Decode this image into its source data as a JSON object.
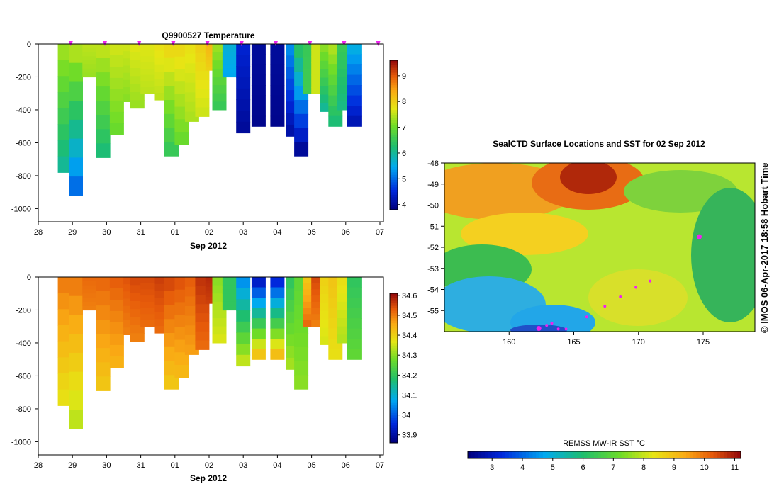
{
  "credit": "© IMOS 06-Apr-2017 18:58 Hobart Time",
  "chart_data": [
    {
      "type": "heatmap",
      "title": "Q9900527  Temperature",
      "xlabel": "Sep 2012",
      "x_ticks": [
        "28",
        "29",
        "30",
        "31",
        "01",
        "02",
        "03",
        "04",
        "05",
        "06",
        "07"
      ],
      "y_ticks": [
        0,
        -200,
        -400,
        -600,
        -800,
        -1000
      ],
      "ylim": [
        -1080,
        0
      ],
      "colorbar": {
        "min": 3.8,
        "max": 9.6,
        "ticks": [
          4,
          5,
          6,
          7,
          8,
          9
        ]
      },
      "profiles": [
        {
          "x": 28.78,
          "depth": 780,
          "surface": 7.3,
          "bottom": 6.0
        },
        {
          "x": 29.1,
          "depth": 920,
          "surface": 7.4,
          "bottom": 5.0
        },
        {
          "x": 29.5,
          "depth": 200,
          "surface": 7.5,
          "bottom": 7.3
        },
        {
          "x": 29.9,
          "depth": 690,
          "surface": 7.5,
          "bottom": 6.2
        },
        {
          "x": 30.3,
          "depth": 550,
          "surface": 7.6,
          "bottom": 7.0
        },
        {
          "x": 30.7,
          "depth": 350,
          "surface": 7.6,
          "bottom": 7.2
        },
        {
          "x": 30.9,
          "depth": 390,
          "surface": 7.7,
          "bottom": 7.3
        },
        {
          "x": 31.2,
          "depth": 300,
          "surface": 7.7,
          "bottom": 7.5
        },
        {
          "x": 31.6,
          "depth": 340,
          "surface": 7.8,
          "bottom": 7.5
        },
        {
          "x": 31.9,
          "depth": 680,
          "surface": 7.9,
          "bottom": 6.5
        },
        {
          "x": 32.2,
          "depth": 610,
          "surface": 7.9,
          "bottom": 7.0
        },
        {
          "x": 32.5,
          "depth": 470,
          "surface": 7.8,
          "bottom": 7.4
        },
        {
          "x": 32.8,
          "depth": 440,
          "surface": 8.0,
          "bottom": 7.6
        },
        {
          "x": 33.1,
          "depth": 160,
          "surface": 8.3,
          "bottom": 8.0
        },
        {
          "x": 33.3,
          "depth": 400,
          "surface": 7.3,
          "bottom": 6.5
        },
        {
          "x": 33.6,
          "depth": 200,
          "surface": 5.6,
          "bottom": 5.4
        },
        {
          "x": 34.0,
          "depth": 540,
          "surface": 4.4,
          "bottom": 4.0
        },
        {
          "x": 34.45,
          "depth": 500,
          "surface": 4.0,
          "bottom": 3.9
        },
        {
          "x": 35.0,
          "depth": 500,
          "surface": 4.0,
          "bottom": 3.9
        },
        {
          "x": 35.45,
          "depth": 560,
          "surface": 5.2,
          "bottom": 4.1
        },
        {
          "x": 35.7,
          "depth": 680,
          "surface": 6.3,
          "bottom": 4.0
        },
        {
          "x": 35.95,
          "depth": 300,
          "surface": 6.5,
          "bottom": 6.6
        },
        {
          "x": 36.2,
          "depth": 300,
          "surface": 7.6,
          "bottom": 7.6
        },
        {
          "x": 36.45,
          "depth": 410,
          "surface": 7.2,
          "bottom": 6.0
        },
        {
          "x": 36.7,
          "depth": 500,
          "surface": 7.4,
          "bottom": 6.2
        },
        {
          "x": 36.95,
          "depth": 400,
          "surface": 6.5,
          "bottom": 6.1
        },
        {
          "x": 37.25,
          "depth": 500,
          "surface": 5.5,
          "bottom": 4.2
        }
      ],
      "markers": [
        28.95,
        29.95,
        30.95,
        31.95,
        32.95,
        33.95,
        34.95,
        35.95,
        36.95,
        37.95
      ]
    },
    {
      "type": "heatmap",
      "title": "",
      "xlabel": "Sep 2012",
      "x_ticks": [
        "28",
        "29",
        "30",
        "31",
        "01",
        "02",
        "03",
        "04",
        "05",
        "06",
        "07"
      ],
      "y_ticks": [
        0,
        -200,
        -400,
        -600,
        -800,
        -1000
      ],
      "ylim": [
        -1080,
        0
      ],
      "colorbar": {
        "min": 33.86,
        "max": 34.61,
        "ticks": [
          33.9,
          34,
          34.1,
          34.2,
          34.3,
          34.4,
          34.5,
          34.6
        ]
      },
      "profiles": [
        {
          "x": 28.78,
          "depth": 780,
          "surface": 34.5,
          "bottom": 34.38
        },
        {
          "x": 29.1,
          "depth": 920,
          "surface": 34.5,
          "bottom": 34.34
        },
        {
          "x": 29.5,
          "depth": 200,
          "surface": 34.52,
          "bottom": 34.5
        },
        {
          "x": 29.9,
          "depth": 690,
          "surface": 34.52,
          "bottom": 34.42
        },
        {
          "x": 30.3,
          "depth": 550,
          "surface": 34.53,
          "bottom": 34.45
        },
        {
          "x": 30.7,
          "depth": 350,
          "surface": 34.54,
          "bottom": 34.5
        },
        {
          "x": 30.9,
          "depth": 390,
          "surface": 34.55,
          "bottom": 34.5
        },
        {
          "x": 31.2,
          "depth": 300,
          "surface": 34.55,
          "bottom": 34.52
        },
        {
          "x": 31.6,
          "depth": 340,
          "surface": 34.56,
          "bottom": 34.52
        },
        {
          "x": 31.9,
          "depth": 680,
          "surface": 34.55,
          "bottom": 34.42
        },
        {
          "x": 32.2,
          "depth": 610,
          "surface": 34.54,
          "bottom": 34.44
        },
        {
          "x": 32.5,
          "depth": 470,
          "surface": 34.53,
          "bottom": 34.47
        },
        {
          "x": 32.8,
          "depth": 440,
          "surface": 34.57,
          "bottom": 34.52
        },
        {
          "x": 33.1,
          "depth": 160,
          "surface": 34.58,
          "bottom": 34.56
        },
        {
          "x": 33.3,
          "depth": 400,
          "surface": 34.3,
          "bottom": 34.36
        },
        {
          "x": 33.6,
          "depth": 200,
          "surface": 34.2,
          "bottom": 34.2
        },
        {
          "x": 34.0,
          "depth": 540,
          "surface": 34.05,
          "bottom": 34.34
        },
        {
          "x": 34.45,
          "depth": 500,
          "surface": 33.93,
          "bottom": 34.42
        },
        {
          "x": 35.0,
          "depth": 500,
          "surface": 33.95,
          "bottom": 34.43
        },
        {
          "x": 35.45,
          "depth": 560,
          "surface": 34.2,
          "bottom": 34.32
        },
        {
          "x": 35.7,
          "depth": 680,
          "surface": 34.26,
          "bottom": 34.3
        },
        {
          "x": 35.95,
          "depth": 300,
          "surface": 34.42,
          "bottom": 34.52
        },
        {
          "x": 36.2,
          "depth": 300,
          "surface": 34.55,
          "bottom": 34.5
        },
        {
          "x": 36.45,
          "depth": 410,
          "surface": 34.4,
          "bottom": 34.36
        },
        {
          "x": 36.7,
          "depth": 500,
          "surface": 34.42,
          "bottom": 34.38
        },
        {
          "x": 36.95,
          "depth": 400,
          "surface": 34.38,
          "bottom": 34.33
        },
        {
          "x": 37.25,
          "depth": 500,
          "surface": 34.2,
          "bottom": 34.26
        }
      ],
      "markers": []
    },
    {
      "type": "heatmap",
      "title": "SealCTD Surface Locations and SST for 02 Sep 2012",
      "xlim": [
        155,
        179
      ],
      "ylim": [
        -56,
        -48
      ],
      "x_ticks": [
        160,
        165,
        170,
        175
      ],
      "y_ticks": [
        -48,
        -49,
        -50,
        -51,
        -52,
        -53,
        -54,
        -55
      ],
      "colorbar": {
        "label": "REMSS MW-IR SST °C",
        "min": 2.2,
        "max": 11.2,
        "ticks": [
          3,
          4,
          5,
          6,
          7,
          8,
          9,
          10,
          11
        ]
      },
      "track": [
        {
          "lon": 162.3,
          "lat": -55.85
        },
        {
          "lon": 162.9,
          "lat": -55.7
        },
        {
          "lon": 163.3,
          "lat": -55.6
        },
        {
          "lon": 163.8,
          "lat": -55.88
        },
        {
          "lon": 164.4,
          "lat": -55.88
        },
        {
          "lon": 166.0,
          "lat": -55.3
        },
        {
          "lon": 167.4,
          "lat": -54.8
        },
        {
          "lon": 168.6,
          "lat": -54.35
        },
        {
          "lon": 169.8,
          "lat": -53.9
        },
        {
          "lon": 170.9,
          "lat": -53.6
        },
        {
          "lon": 174.7,
          "lat": -51.5
        }
      ]
    }
  ]
}
